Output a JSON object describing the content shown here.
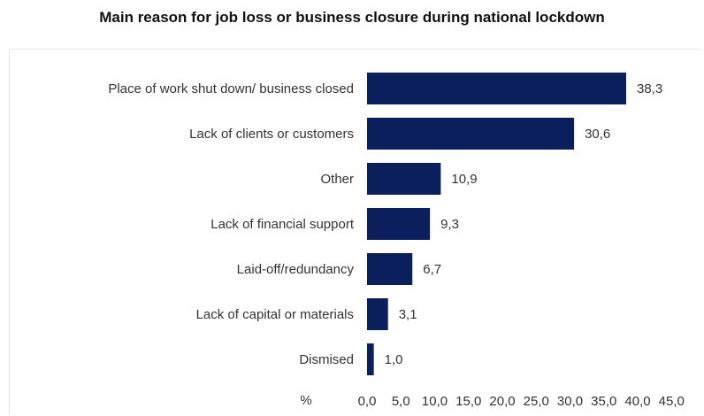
{
  "chart_data": {
    "type": "bar",
    "orientation": "horizontal",
    "title": "Main reason for job loss or business closure during national lockdown",
    "xlabel": "%",
    "ylabel": "",
    "xlim": [
      0,
      45
    ],
    "x_ticks": [
      "0,0",
      "5,0",
      "10,0",
      "15,0",
      "20,0",
      "25,0",
      "30,0",
      "35,0",
      "40,0",
      "45,0"
    ],
    "categories": [
      "Place of work shut down/ business closed",
      "Lack of clients or customers",
      "Other",
      "Lack of financial support",
      "Laid-off/redundancy",
      "Lack of capital or materials",
      "Dismised"
    ],
    "values": [
      38.3,
      30.6,
      10.9,
      9.3,
      6.7,
      3.1,
      1.0
    ],
    "value_labels": [
      "38,3",
      "30,6",
      "10,9",
      "9,3",
      "6,7",
      "3,1",
      "1,0"
    ],
    "bar_color": "#0a1f5c",
    "grid": false,
    "legend": "none"
  }
}
